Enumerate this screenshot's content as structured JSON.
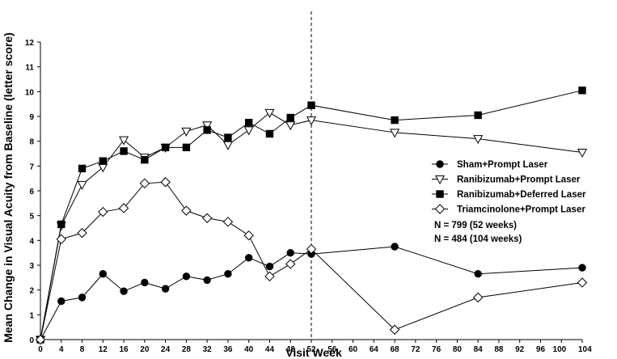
{
  "chart_data": {
    "type": "line",
    "title": "",
    "xlabel": "Visit Week",
    "ylabel": "Mean Change in Visual Acuity from Baseline (letter score)",
    "xlim": [
      0,
      104
    ],
    "ylim": [
      0,
      12
    ],
    "x_tick_labels": [
      "0",
      "4",
      "8",
      "12",
      "16",
      "20",
      "24",
      "28",
      "32",
      "36",
      "40",
      "44",
      "48",
      "52",
      "56",
      "60",
      "64",
      "68",
      "72",
      "76",
      "80",
      "84",
      "88",
      "92",
      "96",
      "100",
      "104"
    ],
    "y_tick_labels": [
      "0",
      "1",
      "2",
      "3",
      "4",
      "5",
      "6",
      "7",
      "8",
      "9",
      "10",
      "11",
      "12"
    ],
    "vertical_reference_line": 52,
    "grid": false,
    "legend_position": "right",
    "series": [
      {
        "name": "Sham+Prompt Laser",
        "color": "#000000",
        "marker": "circle-filled",
        "x": [
          0,
          4,
          8,
          12,
          16,
          20,
          24,
          28,
          32,
          36,
          40,
          44,
          48,
          52,
          68,
          84,
          104
        ],
        "y": [
          0,
          1.55,
          1.7,
          2.65,
          1.95,
          2.3,
          2.05,
          2.55,
          2.4,
          2.65,
          3.3,
          2.95,
          3.5,
          3.45,
          3.75,
          2.65,
          2.9
        ]
      },
      {
        "name": "Ranibizumab+Prompt Laser",
        "color": "#000000",
        "marker": "triangle-down-open",
        "x": [
          0,
          4,
          8,
          12,
          16,
          20,
          24,
          28,
          32,
          36,
          40,
          44,
          48,
          52,
          68,
          84,
          104
        ],
        "y": [
          0,
          4.6,
          6.25,
          6.95,
          8.05,
          7.35,
          7.75,
          8.4,
          8.65,
          7.85,
          8.45,
          9.15,
          8.65,
          8.85,
          8.35,
          8.1,
          7.55
        ]
      },
      {
        "name": "Ranibizumab+Deferred Laser",
        "color": "#000000",
        "marker": "square-filled",
        "x": [
          0,
          4,
          8,
          12,
          16,
          20,
          24,
          28,
          32,
          36,
          40,
          44,
          48,
          52,
          68,
          84,
          104
        ],
        "y": [
          0,
          4.65,
          6.9,
          7.2,
          7.6,
          7.25,
          7.75,
          7.75,
          8.45,
          8.15,
          8.75,
          8.3,
          8.95,
          9.45,
          8.85,
          9.05,
          10.05
        ]
      },
      {
        "name": "Triamcinolone+Prompt Laser",
        "color": "#000000",
        "marker": "diamond-open",
        "x": [
          0,
          4,
          8,
          12,
          16,
          20,
          24,
          28,
          32,
          36,
          40,
          44,
          48,
          52,
          68,
          84,
          104
        ],
        "y": [
          0,
          4.05,
          4.3,
          5.15,
          5.3,
          6.3,
          6.35,
          5.2,
          4.9,
          4.75,
          4.2,
          2.55,
          3.05,
          3.65,
          0.4,
          1.7,
          2.3
        ]
      }
    ],
    "annotations": [
      "N = 799 (52 weeks)",
      "N = 484 (104  weeks)"
    ]
  }
}
